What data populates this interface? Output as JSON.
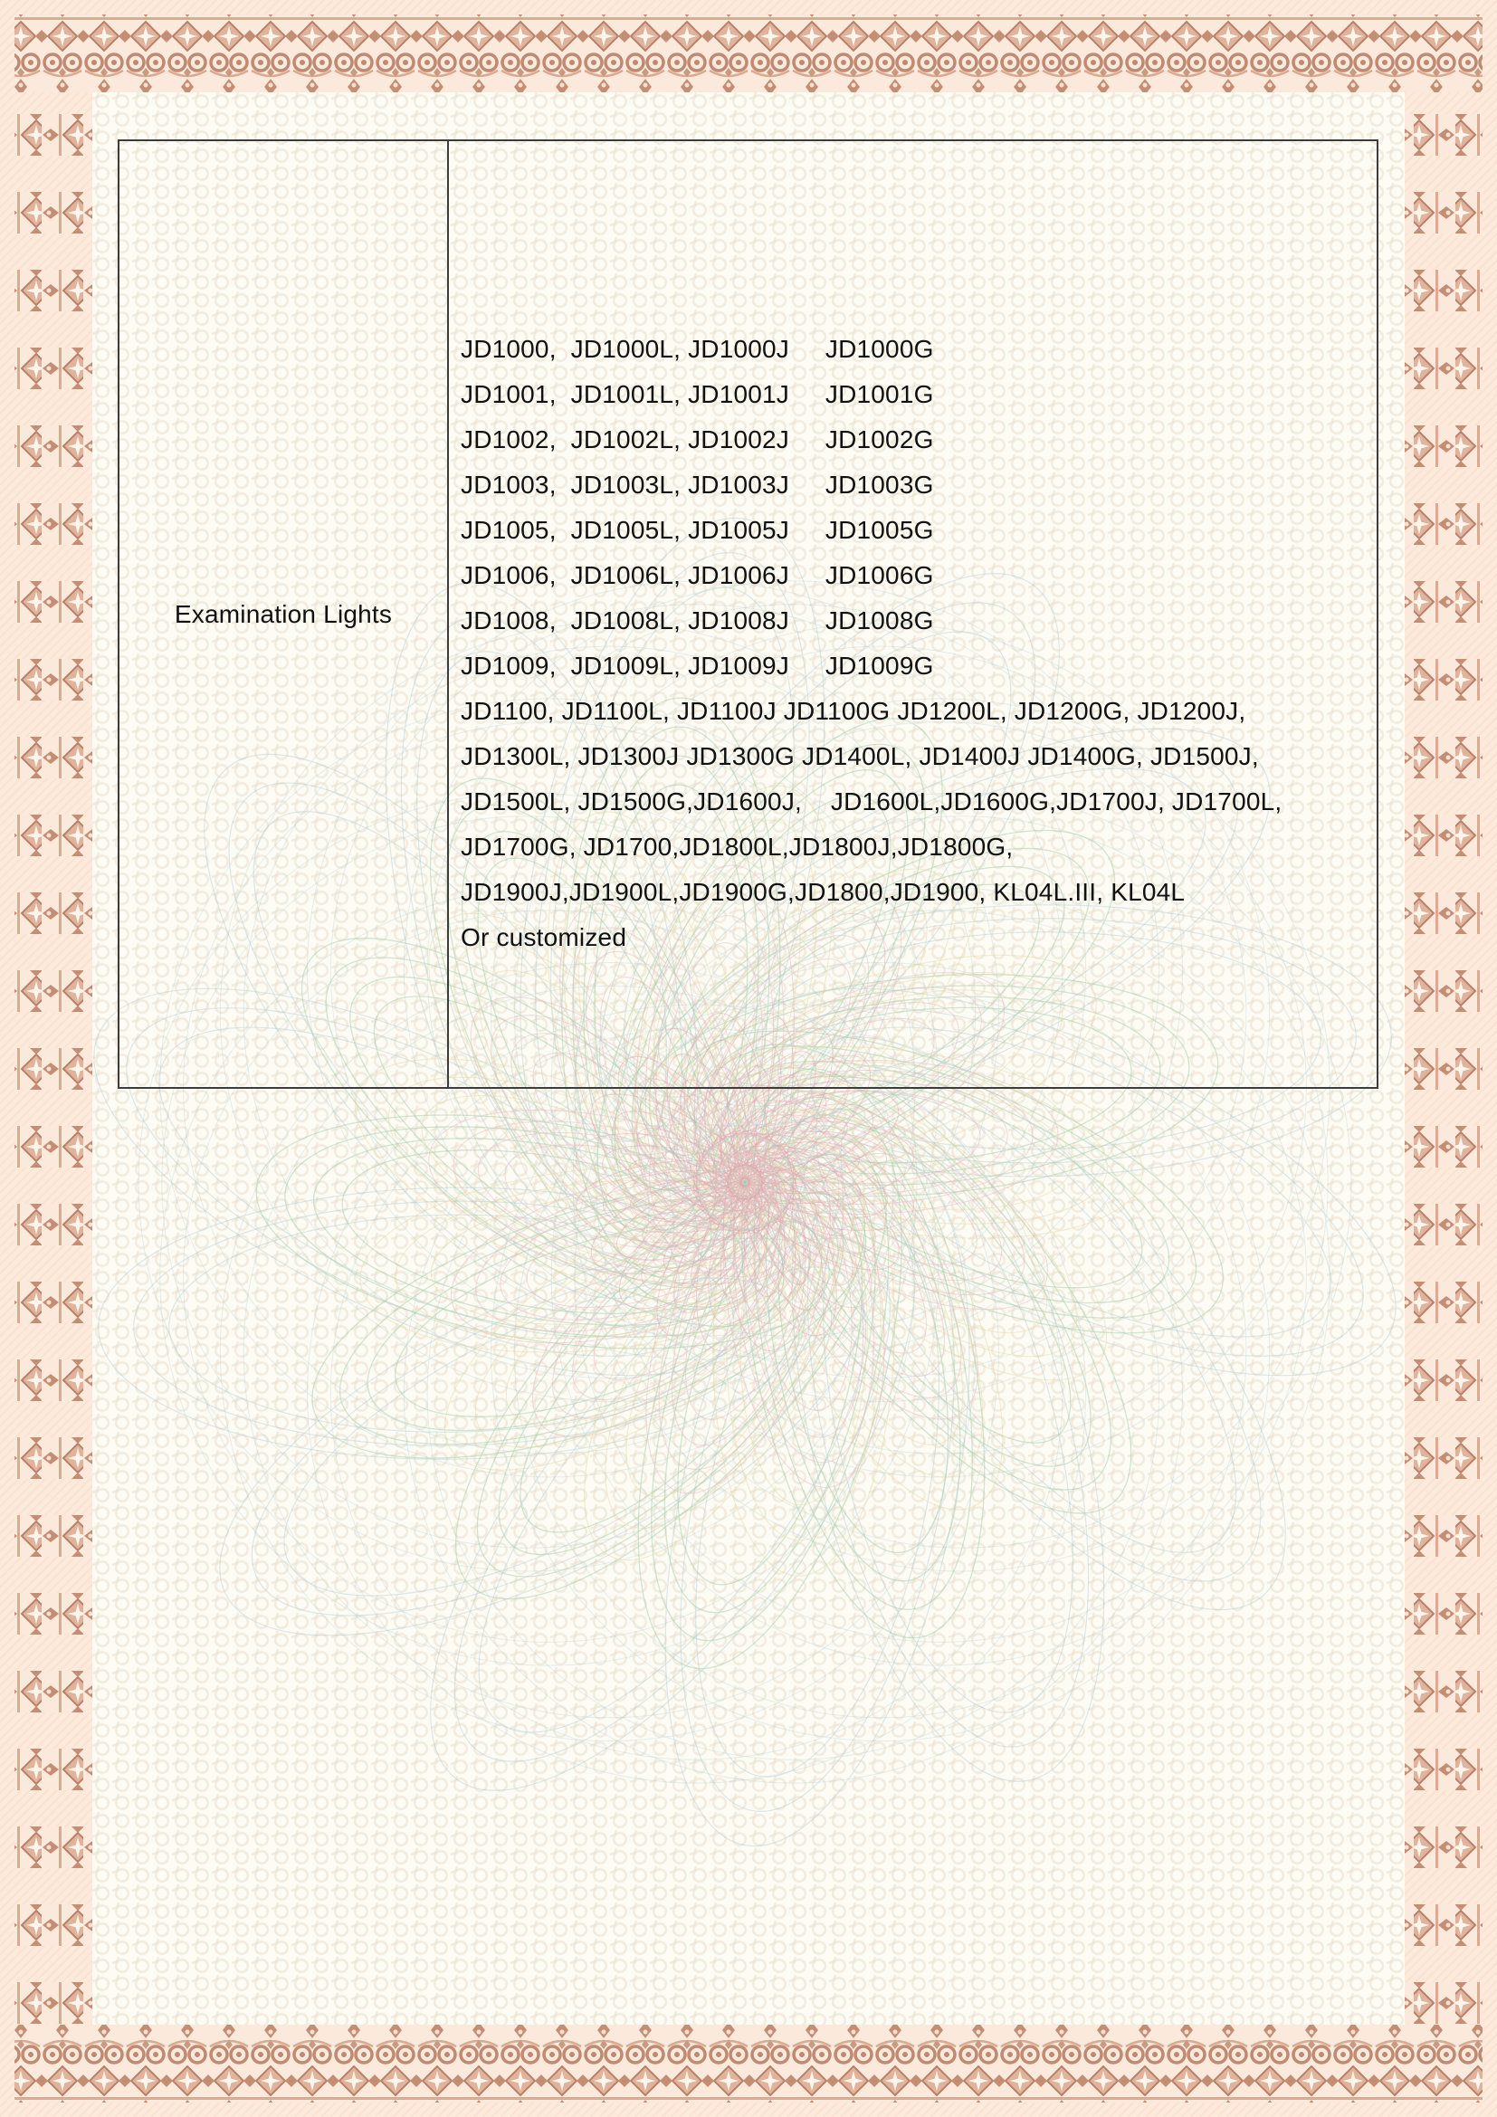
{
  "table": {
    "label": "Examination Lights",
    "lines": [
      "JD1000,  JD1000L, JD1000J     JD1000G",
      "JD1001,  JD1001L, JD1001J     JD1001G",
      "JD1002,  JD1002L, JD1002J     JD1002G",
      "JD1003,  JD1003L, JD1003J     JD1003G",
      "JD1005,  JD1005L, JD1005J     JD1005G",
      "JD1006,  JD1006L, JD1006J     JD1006G",
      "JD1008,  JD1008L, JD1008J     JD1008G",
      "JD1009,  JD1009L, JD1009J     JD1009G",
      "JD1100, JD1100L, JD1100J JD1100G JD1200L, JD1200G, JD1200J,",
      "JD1300L, JD1300J JD1300G JD1400L, JD1400J JD1400G, JD1500J,",
      "JD1500L, JD1500G,JD1600J,    JD1600L,JD1600G,JD1700J, JD1700L,",
      "JD1700G, JD1700,JD1800L,JD1800J,JD1800G,",
      "JD1900J,JD1900L,JD1900G,JD1800,JD1900, KL04L.III, KL04L",
      "Or customized"
    ]
  },
  "colors": {
    "page_margin": "#fdeada",
    "page_inner": "#fcfbf4",
    "border_dark": "#c08a72",
    "border_light": "#e0b49c",
    "border_cream": "#fbe9dc",
    "table_line": "#3c3c3c",
    "text": "#111111",
    "watermark": {
      "blue": "#a9c9cf",
      "green": "#a5cfab",
      "yellow": "#e7d79e",
      "pink": "#e9bcc8",
      "red": "#dfa3b2",
      "center": "#bdd4dc"
    }
  }
}
